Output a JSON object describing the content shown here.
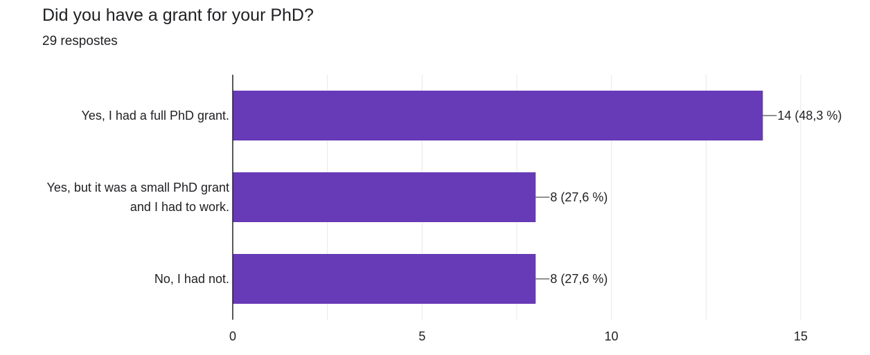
{
  "title": "Did you have a grant for your PhD?",
  "subtitle": "29 respostes",
  "colors": {
    "bar": "#673ab7",
    "grid": "#e8e8e8",
    "axis": "#202124",
    "text": "#202124"
  },
  "chart_data": {
    "type": "bar",
    "orientation": "horizontal",
    "categories": [
      [
        "Yes, I had a full PhD grant."
      ],
      [
        "Yes, but it was a small PhD grant",
        "and I had to work."
      ],
      [
        "No, I had not."
      ]
    ],
    "values": [
      14,
      8,
      8
    ],
    "value_labels": [
      "14 (48,3 %)",
      "8 (27,6 %)",
      "8 (27,6 %)"
    ],
    "xlim": [
      0,
      15
    ],
    "xticks": [
      0,
      5,
      10,
      15
    ],
    "grid": true
  }
}
